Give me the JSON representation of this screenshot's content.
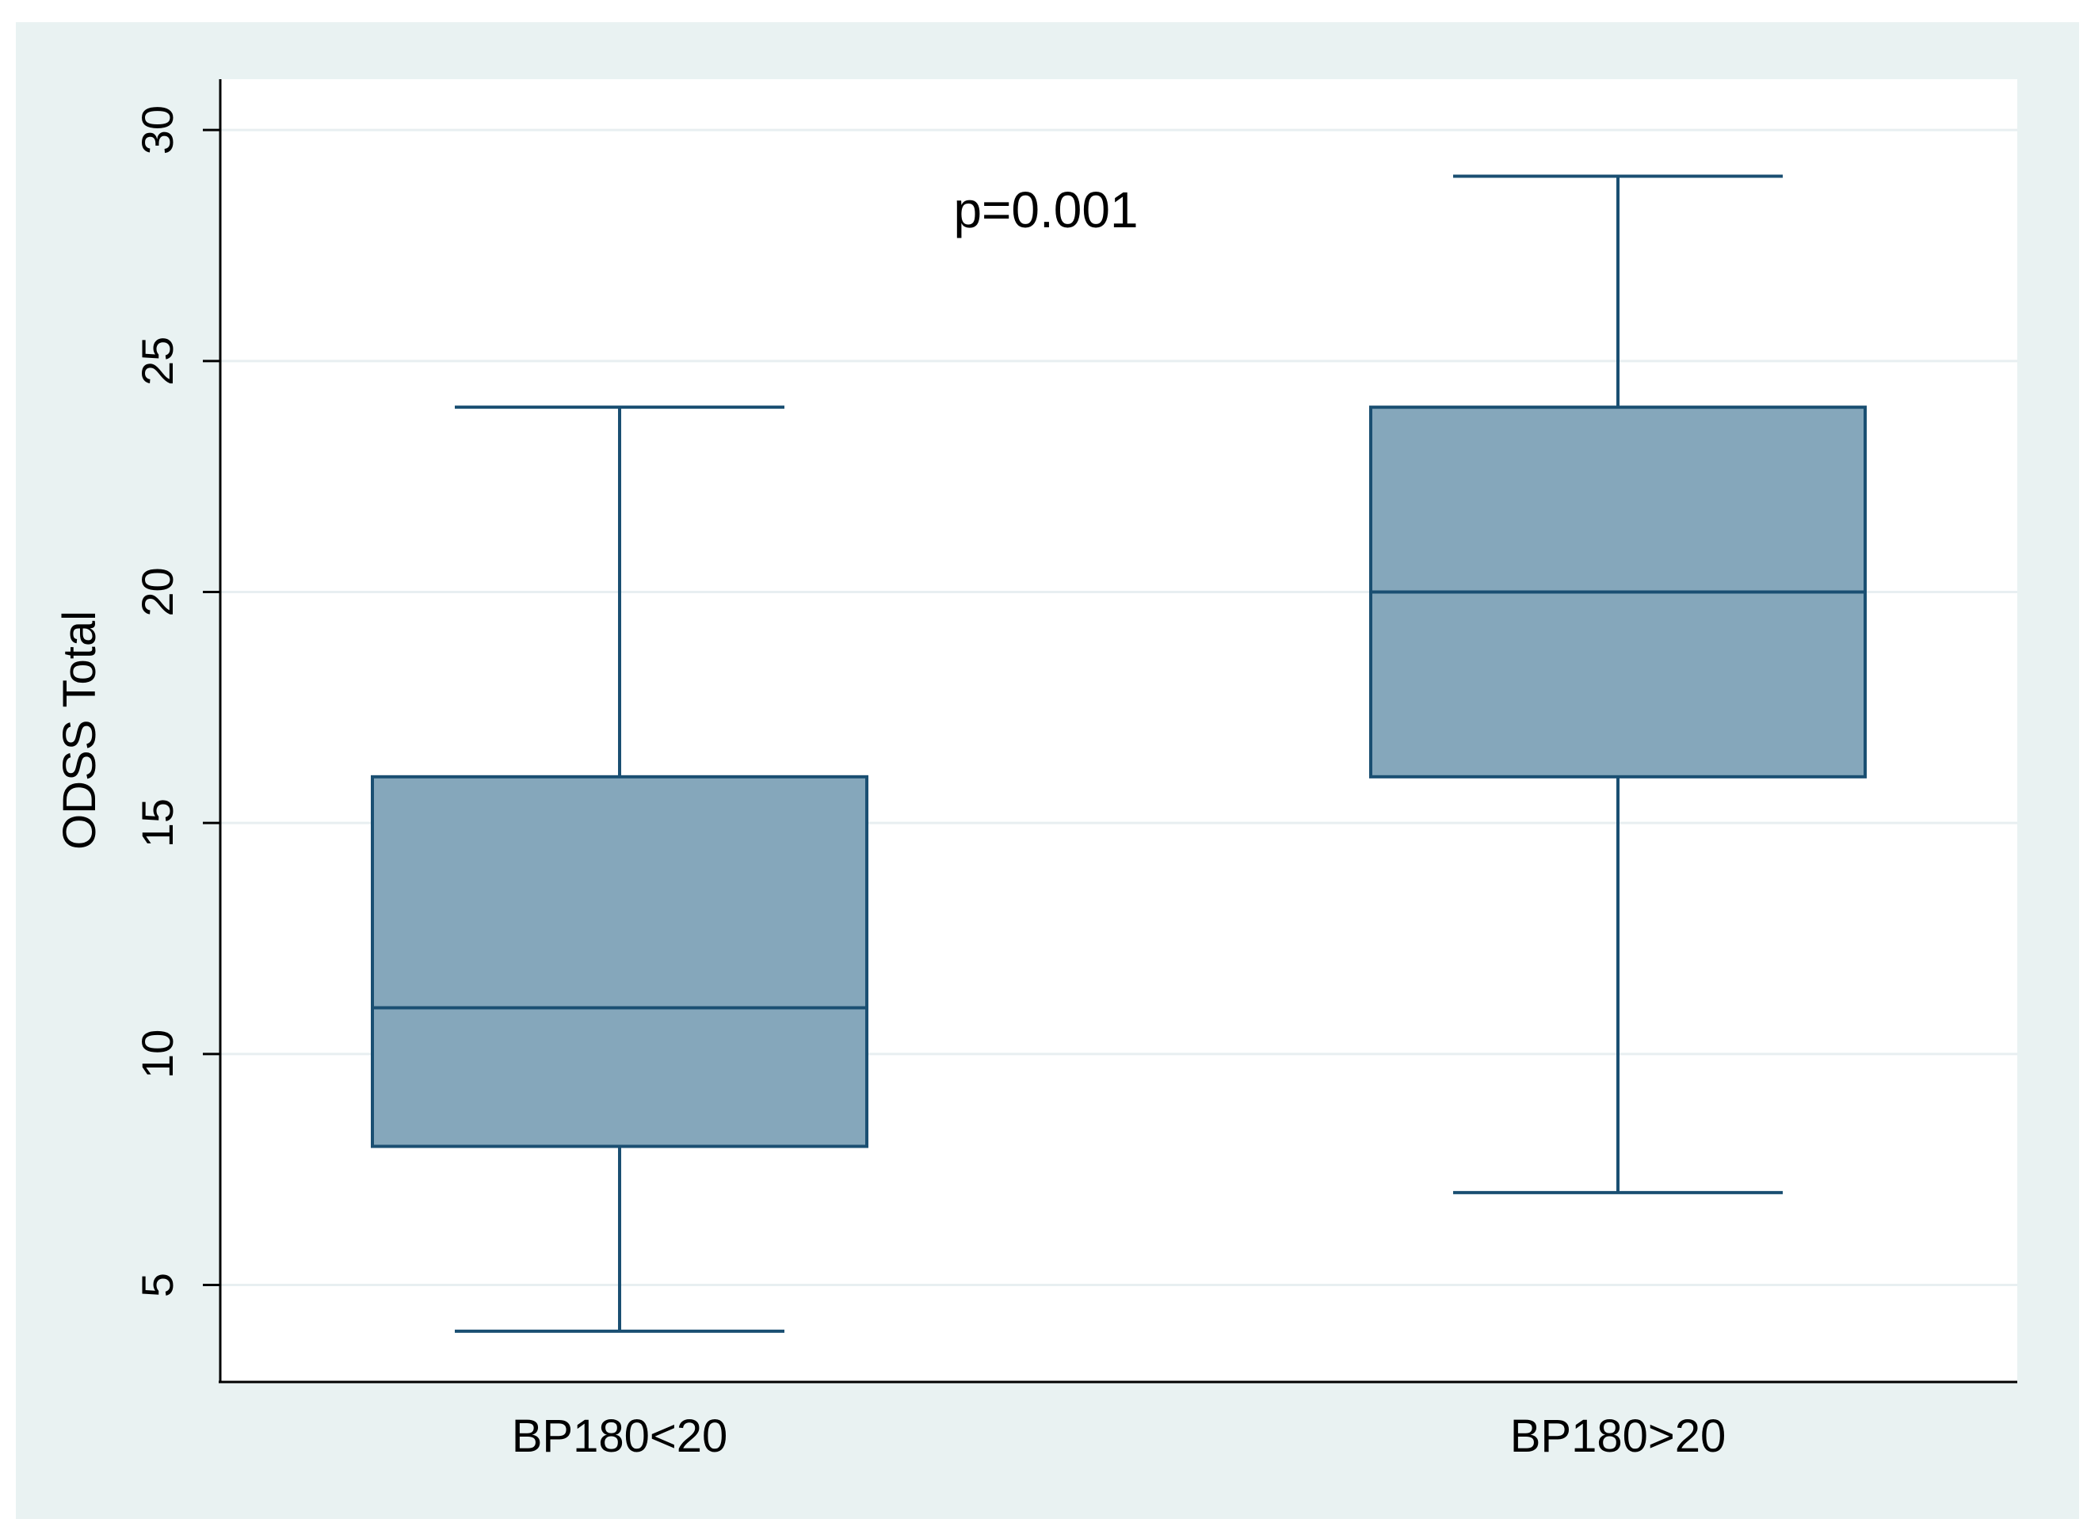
{
  "chart_data": {
    "type": "box",
    "ylabel": "ODSS Total",
    "xlabel": "",
    "ylim": [
      2.9,
      31.1
    ],
    "yticks": [
      5,
      10,
      15,
      20,
      25,
      30
    ],
    "grid": true,
    "annotation": "p=0.001",
    "categories": [
      "BP180<20",
      "BP180>20"
    ],
    "boxes": [
      {
        "category": "BP180<20",
        "min": 4,
        "q1": 8,
        "median": 11,
        "q3": 16,
        "max": 24
      },
      {
        "category": "BP180>20",
        "min": 7,
        "q1": 16,
        "median": 20,
        "q3": 24,
        "max": 29
      }
    ],
    "colors": {
      "outer_background": "#e9f2f2",
      "plot_background": "#ffffff",
      "box_fill": "#85a7bb",
      "box_line": "#1a4f72",
      "grid": "#e8eff1",
      "axis": "#000000"
    }
  }
}
